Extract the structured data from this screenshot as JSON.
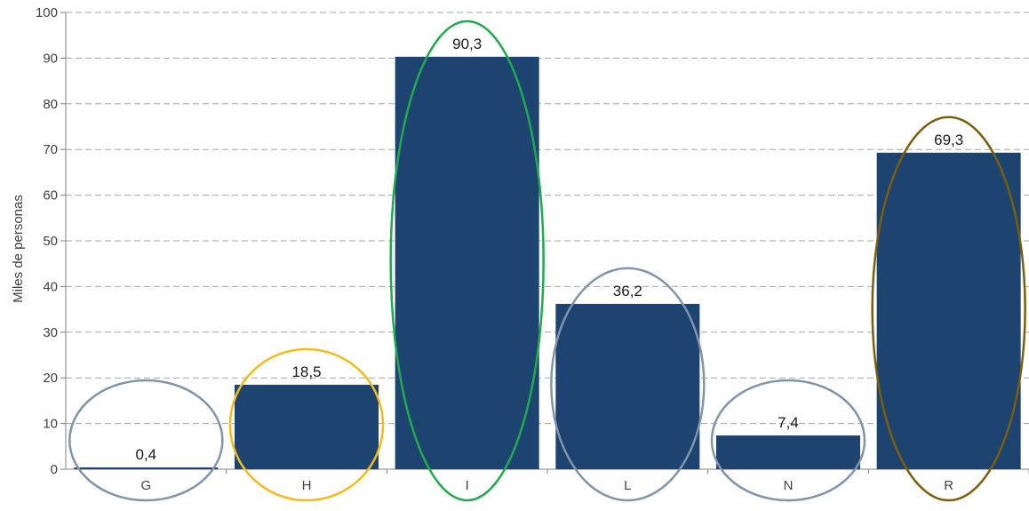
{
  "chart_data": {
    "type": "bar",
    "title": "",
    "xlabel": "",
    "ylabel": "Miles de personas",
    "ylim": [
      0,
      100
    ],
    "yticks": [
      0,
      10,
      20,
      30,
      40,
      50,
      60,
      70,
      80,
      90,
      100
    ],
    "grid": true,
    "categories": [
      "G",
      "H",
      "I",
      "L",
      "N",
      "R"
    ],
    "values": [
      0.4,
      18.5,
      90.3,
      36.2,
      7.4,
      69.3
    ],
    "value_labels": [
      "0,4",
      "18,5",
      "90,3",
      "36,2",
      "7,4",
      "69,3"
    ],
    "bar_color": "#1d4470",
    "highlight_ellipses": [
      {
        "category": "G",
        "color": "#8294aa"
      },
      {
        "category": "H",
        "color": "#f3bb1b"
      },
      {
        "category": "I",
        "color": "#1faa4e"
      },
      {
        "category": "L",
        "color": "#8294aa"
      },
      {
        "category": "N",
        "color": "#8294aa"
      },
      {
        "category": "R",
        "color": "#7b5e08"
      }
    ]
  }
}
